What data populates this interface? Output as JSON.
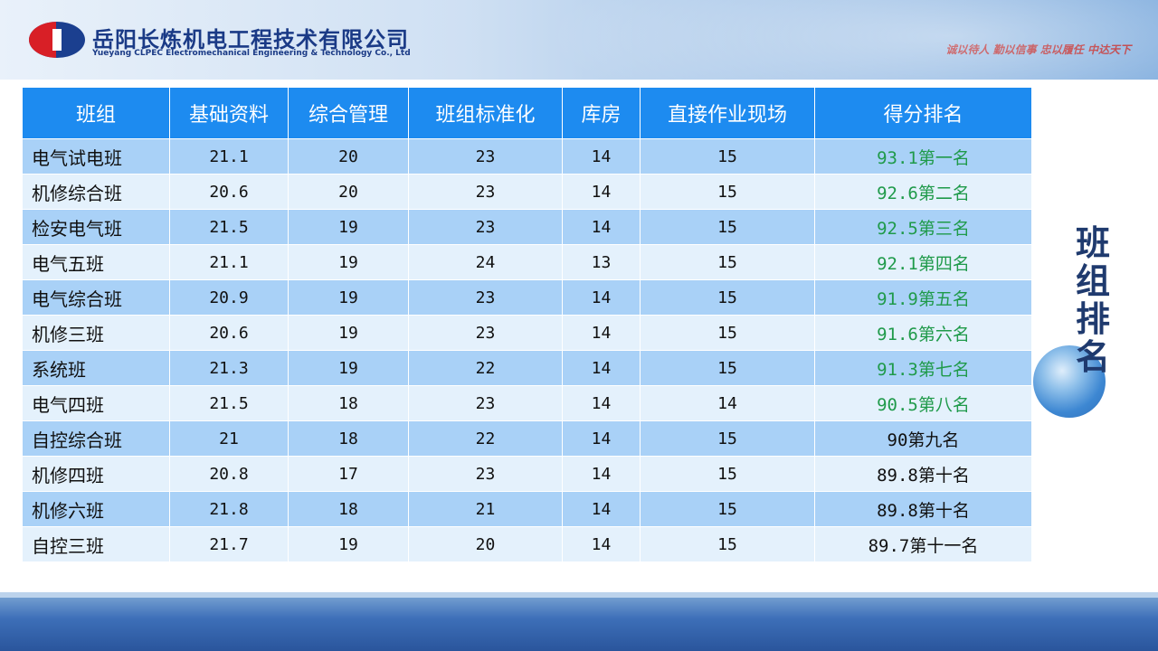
{
  "header": {
    "company_cn": "岳阳长炼机电工程技术有限公司",
    "company_en": "Yueyang CLPEC Electromechanical Engineering & Technology Co., Ltd",
    "slogan": "诚以待人  勤以信事  忠以履任  中达天下"
  },
  "side_title": [
    "班",
    "组",
    "排",
    "名"
  ],
  "colors": {
    "header_bg": "#1d8bf0",
    "row_odd": "#a9d1f7",
    "row_even": "#e4f1fc",
    "rank_green": "#1f9a4a",
    "title_navy": "#1f3a6e"
  },
  "table": {
    "headers": [
      "班组",
      "基础资料",
      "综合管理",
      "班组标准化",
      "库房",
      "直接作业现场",
      "得分排名"
    ],
    "rows": [
      {
        "team": "电气试电班",
        "basic": "21.1",
        "mgmt": "20",
        "std": "23",
        "store": "14",
        "site": "15",
        "rank": "93.1第一名",
        "highlight": true
      },
      {
        "team": "机修综合班",
        "basic": "20.6",
        "mgmt": "20",
        "std": "23",
        "store": "14",
        "site": "15",
        "rank": "92.6第二名",
        "highlight": true
      },
      {
        "team": "检安电气班",
        "basic": "21.5",
        "mgmt": "19",
        "std": "23",
        "store": "14",
        "site": "15",
        "rank": "92.5第三名",
        "highlight": true
      },
      {
        "team": "电气五班",
        "basic": "21.1",
        "mgmt": "19",
        "std": "24",
        "store": "13",
        "site": "15",
        "rank": "92.1第四名",
        "highlight": true
      },
      {
        "team": "电气综合班",
        "basic": "20.9",
        "mgmt": "19",
        "std": "23",
        "store": "14",
        "site": "15",
        "rank": "91.9第五名",
        "highlight": true
      },
      {
        "team": "机修三班",
        "basic": "20.6",
        "mgmt": "19",
        "std": "23",
        "store": "14",
        "site": "15",
        "rank": "91.6第六名",
        "highlight": true
      },
      {
        "team": "系统班",
        "basic": "21.3",
        "mgmt": "19",
        "std": "22",
        "store": "14",
        "site": "15",
        "rank": "91.3第七名",
        "highlight": true
      },
      {
        "team": "电气四班",
        "basic": "21.5",
        "mgmt": "18",
        "std": "23",
        "store": "14",
        "site": "14",
        "rank": "90.5第八名",
        "highlight": true
      },
      {
        "team": "自控综合班",
        "basic": "21",
        "mgmt": "18",
        "std": "22",
        "store": "14",
        "site": "15",
        "rank": "90第九名",
        "highlight": false
      },
      {
        "team": "机修四班",
        "basic": "20.8",
        "mgmt": "17",
        "std": "23",
        "store": "14",
        "site": "15",
        "rank": "89.8第十名",
        "highlight": false
      },
      {
        "team": "机修六班",
        "basic": "21.8",
        "mgmt": "18",
        "std": "21",
        "store": "14",
        "site": "15",
        "rank": "89.8第十名",
        "highlight": false
      },
      {
        "team": "自控三班",
        "basic": "21.7",
        "mgmt": "19",
        "std": "20",
        "store": "14",
        "site": "15",
        "rank": "89.7第十一名",
        "highlight": false
      }
    ]
  }
}
